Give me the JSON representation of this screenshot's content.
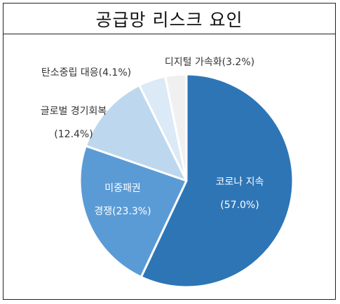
{
  "chart_data": {
    "type": "pie",
    "title": "공급망 리스크 요인",
    "colors": [
      "#2e75b6",
      "#5b9bd5",
      "#bdd7ee",
      "#dce9f6",
      "#f0f0f0"
    ],
    "slices": [
      {
        "label": "코로나 지속",
        "value_text": "(57.0%)",
        "value": 57.0
      },
      {
        "label": "미중패권",
        "label2": "경쟁(23.3%)",
        "value": 23.3
      },
      {
        "label": "글로벌 경기회복",
        "value_text": "(12.4%)",
        "value": 12.4
      },
      {
        "label": "탄소중립 대응(4.1%)",
        "value": 4.1
      },
      {
        "label": "디지털 가속화(3.2%)",
        "value": 3.2
      }
    ]
  }
}
